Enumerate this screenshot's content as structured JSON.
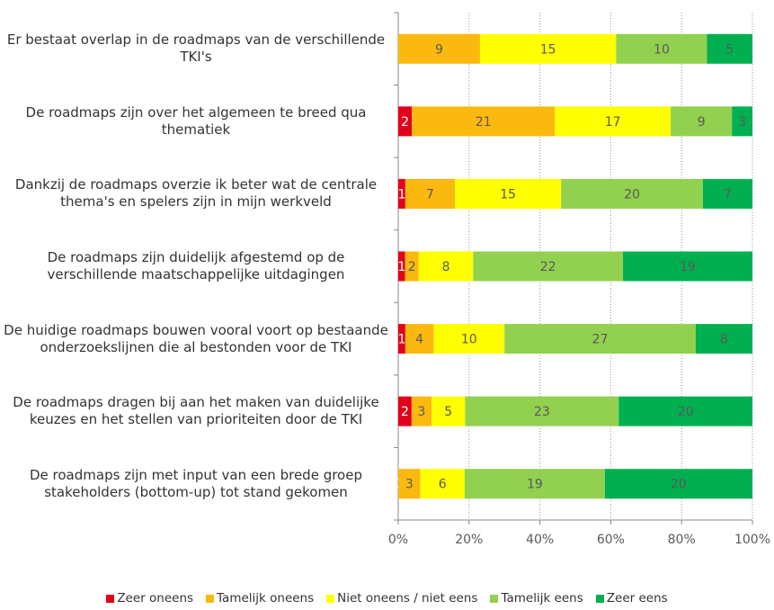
{
  "chart_data": {
    "type": "bar",
    "orientation": "horizontal",
    "stacked": "percent",
    "categories": [
      "Er bestaat overlap in de roadmaps van de verschillende TKI's",
      "De roadmaps zijn over het algemeen te breed qua thematiek",
      "Dankzij de roadmaps overzie ik beter wat de centrale thema's en spelers zijn in mijn werkveld",
      "De roadmaps zijn duidelijk afgestemd op de verschillende maatschappelijke uitdagingen",
      "De huidige roadmaps bouwen vooral voort op bestaande onderzoekslijnen die al bestonden voor de TKI",
      "De roadmaps dragen bij aan het maken van duidelijke keuzes en het stellen van prioriteiten door de TKI",
      "De roadmaps zijn met input van een brede groep stakeholders (bottom-up) tot stand gekomen"
    ],
    "series": [
      {
        "name": "Zeer oneens",
        "color": "#e3001b",
        "label_color": "#ffffff",
        "values": [
          null,
          2,
          1,
          1,
          1,
          2,
          0
        ]
      },
      {
        "name": "Tamelijk oneens",
        "color": "#fbb80f",
        "label_color": "#595959",
        "values": [
          9,
          21,
          7,
          2,
          4,
          3,
          3
        ]
      },
      {
        "name": "Niet oneens / niet eens",
        "color": "#ffff00",
        "label_color": "#595959",
        "values": [
          15,
          17,
          15,
          8,
          10,
          5,
          6
        ]
      },
      {
        "name": "Tamelijk eens",
        "color": "#92d050",
        "label_color": "#595959",
        "values": [
          10,
          9,
          20,
          22,
          27,
          23,
          19
        ]
      },
      {
        "name": "Zeer eens",
        "color": "#00b050",
        "label_color": "#595959",
        "values": [
          5,
          3,
          7,
          19,
          8,
          20,
          20
        ]
      }
    ],
    "xlim": [
      0,
      100
    ],
    "xticks": [
      {
        "value": 0,
        "label": "0%"
      },
      {
        "value": 20,
        "label": "20%"
      },
      {
        "value": 40,
        "label": "40%"
      },
      {
        "value": 60,
        "label": "60%"
      },
      {
        "value": 80,
        "label": "80%"
      },
      {
        "value": 100,
        "label": "100%"
      }
    ],
    "grid": true,
    "legend": "bottom"
  }
}
